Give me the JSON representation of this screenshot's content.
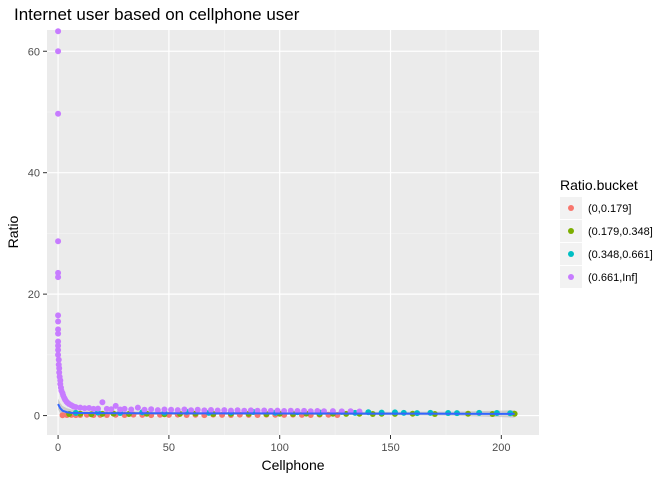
{
  "chart_data": {
    "type": "scatter",
    "title": "Internet user based on cellphone user",
    "xlabel": "Cellphone",
    "ylabel": "Ratio",
    "xlim": [
      -5,
      217
    ],
    "ylim": [
      -3.2,
      63.5
    ],
    "xticks": [
      0,
      50,
      100,
      150,
      200
    ],
    "yticks": [
      0,
      20,
      40,
      60
    ],
    "xtick_labels": [
      "0",
      "50",
      "100",
      "150",
      "200"
    ],
    "ytick_labels": [
      "0",
      "20",
      "40",
      "60"
    ],
    "grid": true,
    "background": "#ebebeb",
    "legend": {
      "title": "Ratio.bucket",
      "placement": "right",
      "entries": [
        {
          "label": "(0,0.179]",
          "color": "#f8766d"
        },
        {
          "label": "(0.179,0.348]",
          "color": "#7cae00"
        },
        {
          "label": "(0.348,0.661]",
          "color": "#00bfc4"
        },
        {
          "label": "(0.661,Inf]",
          "color": "#c77cff"
        }
      ]
    },
    "series": [
      {
        "name": "(0,0.179]",
        "color": "#f8766d",
        "points": [
          [
            2,
            0.05
          ],
          [
            4,
            0.1
          ],
          [
            6,
            0.12
          ],
          [
            8,
            0.08
          ],
          [
            10,
            0.1
          ],
          [
            13,
            0.14
          ],
          [
            16,
            0.1
          ],
          [
            19,
            0.12
          ],
          [
            22,
            0.09
          ],
          [
            26,
            0.13
          ],
          [
            30,
            0.1
          ],
          [
            34,
            0.15
          ],
          [
            38,
            0.12
          ],
          [
            42,
            0.08
          ],
          [
            46,
            0.14
          ],
          [
            50,
            0.11
          ],
          [
            54,
            0.15
          ],
          [
            58,
            0.1
          ],
          [
            62,
            0.13
          ],
          [
            66,
            0.08
          ],
          [
            70,
            0.16
          ],
          [
            74,
            0.12
          ],
          [
            78,
            0.1
          ],
          [
            82,
            0.15
          ],
          [
            86,
            0.12
          ],
          [
            90,
            0.09
          ],
          [
            94,
            0.16
          ],
          [
            98,
            0.13
          ],
          [
            102,
            0.11
          ],
          [
            106,
            0.15
          ],
          [
            110,
            0.12
          ],
          [
            114,
            0.1
          ],
          [
            118,
            0.16
          ],
          [
            122,
            0.13
          ],
          [
            126,
            0.1
          ]
        ]
      },
      {
        "name": "(0.179,0.348]",
        "color": "#7cae00",
        "points": [
          [
            5,
            0.25
          ],
          [
            10,
            0.3
          ],
          [
            15,
            0.22
          ],
          [
            20,
            0.28
          ],
          [
            25,
            0.32
          ],
          [
            32,
            0.26
          ],
          [
            40,
            0.3
          ],
          [
            48,
            0.22
          ],
          [
            55,
            0.28
          ],
          [
            62,
            0.31
          ],
          [
            70,
            0.25
          ],
          [
            78,
            0.3
          ],
          [
            86,
            0.27
          ],
          [
            94,
            0.24
          ],
          [
            100,
            0.3
          ],
          [
            106,
            0.26
          ],
          [
            112,
            0.32
          ],
          [
            118,
            0.24
          ],
          [
            124,
            0.29
          ],
          [
            130,
            0.27
          ],
          [
            136,
            0.3
          ],
          [
            142,
            0.25
          ],
          [
            146,
            0.3
          ],
          [
            152,
            0.27
          ],
          [
            160,
            0.3
          ],
          [
            170,
            0.26
          ],
          [
            185,
            0.3
          ],
          [
            196,
            0.25
          ],
          [
            206,
            0.3
          ]
        ]
      },
      {
        "name": "(0.348,0.661]",
        "color": "#00bfc4",
        "points": [
          [
            8,
            0.45
          ],
          [
            18,
            0.5
          ],
          [
            28,
            0.42
          ],
          [
            38,
            0.55
          ],
          [
            48,
            0.48
          ],
          [
            58,
            0.6
          ],
          [
            68,
            0.44
          ],
          [
            78,
            0.52
          ],
          [
            88,
            0.58
          ],
          [
            98,
            0.46
          ],
          [
            108,
            0.55
          ],
          [
            118,
            0.5
          ],
          [
            128,
            0.6
          ],
          [
            134,
            0.45
          ],
          [
            140,
            0.55
          ],
          [
            146,
            0.48
          ],
          [
            152,
            0.52
          ],
          [
            156,
            0.45
          ],
          [
            162,
            0.4
          ],
          [
            168,
            0.45
          ],
          [
            176,
            0.42
          ],
          [
            180,
            0.4
          ],
          [
            190,
            0.44
          ],
          [
            198,
            0.42
          ],
          [
            204,
            0.38
          ]
        ]
      },
      {
        "name": "(0.661,Inf]",
        "color": "#c77cff",
        "points": [
          [
            0,
            63.3
          ],
          [
            0,
            60
          ],
          [
            0,
            49.7
          ],
          [
            0,
            28.7
          ],
          [
            0,
            23.5
          ],
          [
            0,
            22.8
          ],
          [
            0,
            16.5
          ],
          [
            0,
            15.5
          ],
          [
            0,
            14.2
          ],
          [
            0,
            13.5
          ],
          [
            0,
            12.2
          ],
          [
            0,
            11.5
          ],
          [
            0,
            10.8
          ],
          [
            0,
            10
          ],
          [
            0.3,
            9.2
          ],
          [
            0.3,
            8.4
          ],
          [
            0.5,
            7.8
          ],
          [
            0.5,
            7.1
          ],
          [
            0.7,
            6.4
          ],
          [
            1,
            5.8
          ],
          [
            1,
            5.2
          ],
          [
            1.3,
            4.6
          ],
          [
            1.5,
            4.1
          ],
          [
            2,
            3.7
          ],
          [
            2.3,
            3.3
          ],
          [
            2.8,
            2.9
          ],
          [
            3.2,
            2.6
          ],
          [
            3.8,
            2.3
          ],
          [
            4.3,
            2.1
          ],
          [
            5,
            1.9
          ],
          [
            6,
            1.7
          ],
          [
            7,
            1.5
          ],
          [
            8,
            1.4
          ],
          [
            10,
            1.3
          ],
          [
            12,
            1.2
          ],
          [
            14,
            1.25
          ],
          [
            16,
            1.1
          ],
          [
            18,
            1.15
          ],
          [
            20,
            2.2
          ],
          [
            22,
            1.1
          ],
          [
            24,
            1.05
          ],
          [
            26,
            1.6
          ],
          [
            28,
            1
          ],
          [
            30,
            1.1
          ],
          [
            33,
            1.0
          ],
          [
            36,
            1.3
          ],
          [
            39,
            0.95
          ],
          [
            42,
            1.05
          ],
          [
            45,
            0.9
          ],
          [
            48,
            1.0
          ],
          [
            51,
            0.95
          ],
          [
            54,
            0.9
          ],
          [
            57,
            1.0
          ],
          [
            60,
            0.88
          ],
          [
            63,
            0.95
          ],
          [
            66,
            0.85
          ],
          [
            69,
            0.92
          ],
          [
            72,
            0.84
          ],
          [
            75,
            0.9
          ],
          [
            78,
            0.82
          ],
          [
            81,
            0.88
          ],
          [
            84,
            0.8
          ],
          [
            87,
            0.86
          ],
          [
            90,
            0.8
          ],
          [
            93,
            0.84
          ],
          [
            96,
            0.78
          ],
          [
            99,
            0.82
          ],
          [
            102,
            0.76
          ],
          [
            105,
            0.8
          ],
          [
            108,
            0.75
          ],
          [
            111,
            0.78
          ],
          [
            114,
            0.72
          ],
          [
            117,
            0.75
          ],
          [
            120,
            0.72
          ],
          [
            124,
            0.74
          ],
          [
            128,
            0.7
          ],
          [
            132,
            0.72
          ],
          [
            136,
            0.68
          ]
        ]
      }
    ],
    "trend": {
      "color": "#3366ff",
      "band_color": "#999999",
      "points": [
        [
          0,
          1.9
        ],
        [
          1,
          1.2
        ],
        [
          2,
          0.8
        ],
        [
          4,
          0.55
        ],
        [
          6,
          0.45
        ],
        [
          10,
          0.42
        ],
        [
          20,
          0.4
        ],
        [
          40,
          0.38
        ],
        [
          60,
          0.37
        ],
        [
          80,
          0.36
        ],
        [
          100,
          0.35
        ],
        [
          120,
          0.34
        ],
        [
          140,
          0.33
        ],
        [
          160,
          0.32
        ],
        [
          180,
          0.3
        ],
        [
          200,
          0.28
        ],
        [
          206,
          0.27
        ]
      ],
      "band_width": [
        [
          0,
          0.9
        ],
        [
          10,
          0.3
        ],
        [
          100,
          0.2
        ],
        [
          180,
          0.35
        ],
        [
          206,
          0.6
        ]
      ]
    }
  }
}
